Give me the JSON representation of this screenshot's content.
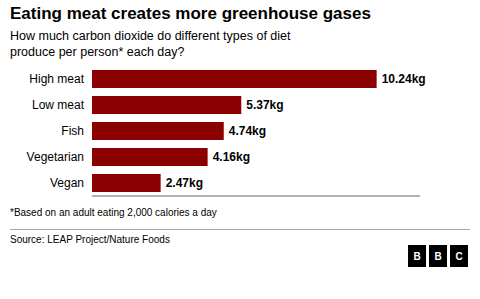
{
  "chart_data": {
    "type": "bar",
    "orientation": "horizontal",
    "title": "Eating meat creates more greenhouse gases",
    "subtitle": "How much carbon dioxide do different types of diet\nproduce per person* each day?",
    "categories": [
      "High meat",
      "Low meat",
      "Fish",
      "Vegetarian",
      "Vegan"
    ],
    "values": [
      10.24,
      5.37,
      4.74,
      4.16,
      2.47
    ],
    "value_labels": [
      "10.24kg",
      "5.37kg",
      "4.74kg",
      "4.16kg",
      "2.47kg"
    ],
    "data_labels": true,
    "color": "#8B0000",
    "xlim": [
      0,
      11.8
    ],
    "tick_labels": "y",
    "grid": false,
    "footnote": "*Based on an adult eating 2,000 calories a day",
    "source": "Source: LEAP Project/Nature Foods",
    "annotations": [
      "BBC"
    ]
  }
}
